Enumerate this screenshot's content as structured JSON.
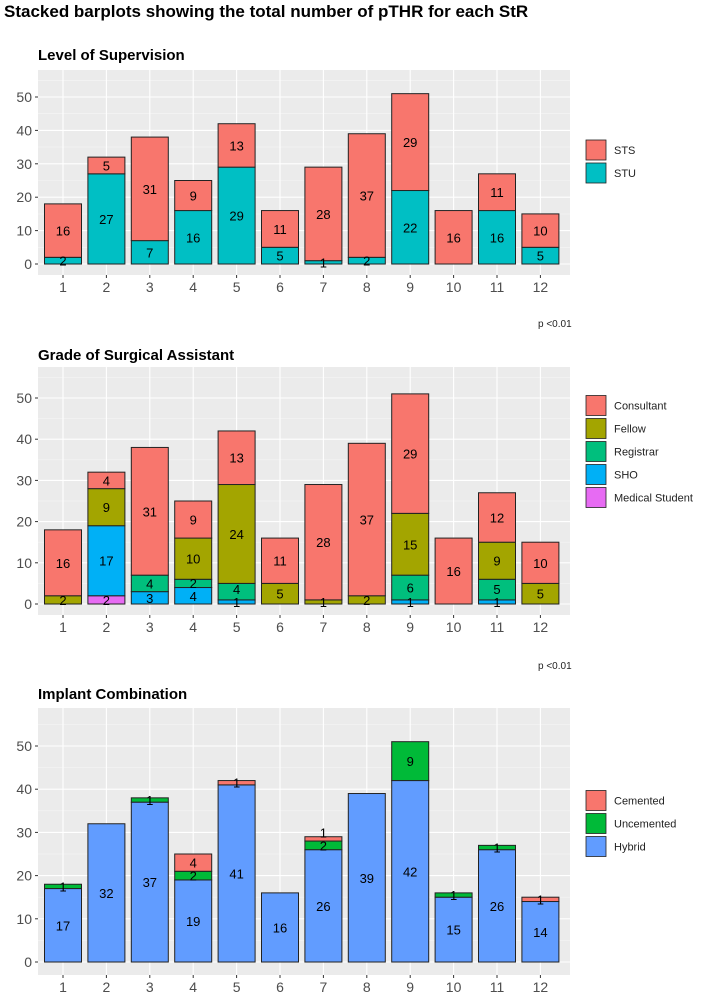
{
  "title": "Stacked barplots showing the total number of pTHR for each StR",
  "chart_data": [
    {
      "type": "bar",
      "stacked": true,
      "title": "Level of Supervision",
      "categories": [
        "1",
        "2",
        "3",
        "4",
        "5",
        "6",
        "7",
        "8",
        "9",
        "10",
        "11",
        "12"
      ],
      "ylim": [
        0,
        55
      ],
      "yticks": [
        0,
        10,
        20,
        30,
        40,
        50
      ],
      "grid": true,
      "legend_position": "right",
      "series": [
        {
          "name": "STU",
          "color": "#00BFC4",
          "values": [
            2,
            27,
            7,
            16,
            29,
            5,
            1,
            2,
            22,
            0,
            16,
            5
          ]
        },
        {
          "name": "STS",
          "color": "#F8766D",
          "values": [
            16,
            5,
            31,
            9,
            13,
            11,
            28,
            37,
            29,
            16,
            11,
            10
          ]
        }
      ],
      "legend_order": [
        "STS",
        "STU"
      ],
      "annotation": "p <0.01"
    },
    {
      "type": "bar",
      "stacked": true,
      "title": "Grade of Surgical Assistant",
      "categories": [
        "1",
        "2",
        "3",
        "4",
        "5",
        "6",
        "7",
        "8",
        "9",
        "10",
        "11",
        "12"
      ],
      "ylim": [
        0,
        55
      ],
      "yticks": [
        0,
        10,
        20,
        30,
        40,
        50
      ],
      "grid": true,
      "legend_position": "right",
      "series": [
        {
          "name": "Medical Student",
          "color": "#E76BF3",
          "values": [
            0,
            2,
            0,
            0,
            0,
            0,
            0,
            0,
            0,
            0,
            0,
            0
          ]
        },
        {
          "name": "SHO",
          "color": "#00B0F6",
          "values": [
            0,
            17,
            3,
            4,
            1,
            0,
            0,
            0,
            1,
            0,
            1,
            0
          ]
        },
        {
          "name": "Registrar",
          "color": "#00BF7D",
          "values": [
            0,
            0,
            4,
            2,
            4,
            0,
            0,
            0,
            6,
            0,
            5,
            0
          ]
        },
        {
          "name": "Fellow",
          "color": "#A3A500",
          "values": [
            2,
            9,
            0,
            10,
            24,
            5,
            1,
            2,
            15,
            0,
            9,
            5
          ]
        },
        {
          "name": "Consultant",
          "color": "#F8766D",
          "values": [
            16,
            4,
            31,
            9,
            13,
            11,
            28,
            37,
            29,
            16,
            12,
            10
          ]
        }
      ],
      "legend_order": [
        "Consultant",
        "Fellow",
        "Registrar",
        "SHO",
        "Medical Student"
      ],
      "annotation": "p <0.01"
    },
    {
      "type": "bar",
      "stacked": true,
      "title": "Implant Combination",
      "categories": [
        "1",
        "2",
        "3",
        "4",
        "5",
        "6",
        "7",
        "8",
        "9",
        "10",
        "11",
        "12"
      ],
      "ylim": [
        0,
        55
      ],
      "yticks": [
        0,
        10,
        20,
        30,
        40,
        50
      ],
      "grid": true,
      "legend_position": "right",
      "series": [
        {
          "name": "Hybrid",
          "color": "#619CFF",
          "values": [
            17,
            32,
            37,
            19,
            41,
            16,
            26,
            39,
            42,
            15,
            26,
            14
          ]
        },
        {
          "name": "Uncemented",
          "color": "#00BA38",
          "values": [
            1,
            0,
            1,
            2,
            0,
            0,
            2,
            0,
            9,
            1,
            1,
            0
          ]
        },
        {
          "name": "Cemented",
          "color": "#F8766D",
          "values": [
            0,
            0,
            0,
            4,
            1,
            0,
            1,
            0,
            0,
            0,
            0,
            1
          ]
        }
      ],
      "legend_order": [
        "Cemented",
        "Uncemented",
        "Hybrid"
      ]
    }
  ]
}
